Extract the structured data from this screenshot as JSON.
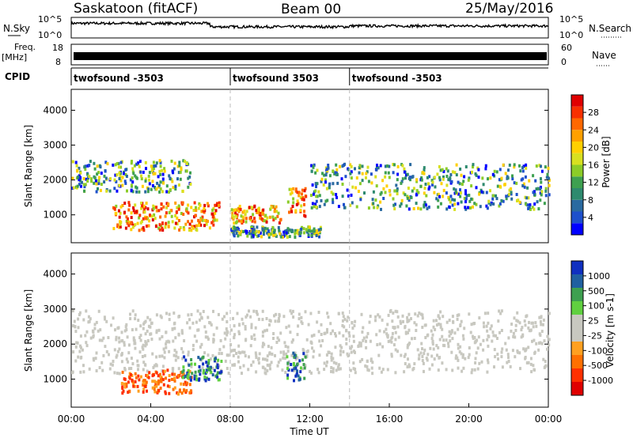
{
  "header": {
    "station": "Saskatoon (fitACF)",
    "beam": "Beam 00",
    "date": "25/May/2016"
  },
  "strips": {
    "nsky_label": "N.Sky",
    "nsky_ticks": [
      "10^5",
      "10^0"
    ],
    "nsearch_label": "N.Search",
    "nsearch_ticks": [
      "10^5",
      "10^0"
    ],
    "freq_label": "Freq.",
    "freq_unit": "[MHz]",
    "freq_ticks": [
      "18",
      "8"
    ],
    "nave_label": "Nave",
    "nave_ticks": [
      "60",
      "0"
    ],
    "cpid_label": "CPID"
  },
  "cpid_segments": [
    {
      "label": "twofsound -3503",
      "start_h": 0,
      "end_h": 8.0
    },
    {
      "label": "twofsound 3503",
      "start_h": 8.0,
      "end_h": 14.0
    },
    {
      "label": "twofsound -3503",
      "start_h": 14.0,
      "end_h": 24.0
    }
  ],
  "chart_data": [
    {
      "type": "heatmap",
      "quantity": "Power",
      "ylabel": "Slant Range [km]",
      "ylim": [
        200,
        4600
      ],
      "yticks": [
        "1000",
        "2000",
        "3000",
        "4000"
      ],
      "xlim_hours": [
        0,
        24
      ],
      "colorbar": {
        "label": "Power [dB]",
        "ticks": [
          "28",
          "24",
          "20",
          "16",
          "12",
          "8",
          "4"
        ],
        "colors": [
          "#0000ff",
          "#1e50cc",
          "#2a6aa0",
          "#2e8a6e",
          "#3ea050",
          "#8ccc28",
          "#d8e020",
          "#ffd000",
          "#ffa000",
          "#ff6800",
          "#f83000",
          "#e00000"
        ]
      },
      "echo_regions": [
        {
          "t0": 0.0,
          "t1": 6.0,
          "r0": 1700,
          "r1": 2600,
          "level": "medium"
        },
        {
          "t0": 2.0,
          "t1": 7.5,
          "r0": 600,
          "r1": 1400,
          "level": "high"
        },
        {
          "t0": 8.0,
          "t1": 10.5,
          "r0": 800,
          "r1": 1300,
          "level": "high"
        },
        {
          "t0": 10.8,
          "t1": 11.8,
          "r0": 1000,
          "r1": 1800,
          "level": "high"
        },
        {
          "t0": 12.0,
          "t1": 24.0,
          "r0": 1200,
          "r1": 2500,
          "level": "medium"
        },
        {
          "t0": 8.0,
          "t1": 12.5,
          "r0": 400,
          "r1": 700,
          "level": "medium"
        }
      ]
    },
    {
      "type": "heatmap",
      "quantity": "Velocity",
      "ylabel": "Slant Range [km]",
      "ylim": [
        200,
        4600
      ],
      "yticks": [
        "1000",
        "2000",
        "3000",
        "4000"
      ],
      "xlim_hours": [
        0,
        24
      ],
      "xlabel": "Time UT",
      "xticks": [
        "00:00",
        "04:00",
        "08:00",
        "12:00",
        "16:00",
        "20:00",
        "00:00"
      ],
      "colorbar": {
        "label": "Velocity [m s-1]",
        "ticks": [
          "1000",
          "500",
          "100",
          "25",
          "-25",
          "-100",
          "-500",
          "-1000"
        ],
        "colors": [
          "#e00000",
          "#ff3000",
          "#ff7000",
          "#ffa020",
          "#c8c8c0",
          "#c8c8c0",
          "#60d040",
          "#3ea050",
          "#2060a0",
          "#1030c0"
        ]
      },
      "echo_regions": [
        {
          "t0": 0.0,
          "t1": 24.0,
          "r0": 1200,
          "r1": 3000,
          "level": "ground"
        },
        {
          "t0": 2.5,
          "t1": 6.0,
          "r0": 600,
          "r1": 1300,
          "level": "negative"
        },
        {
          "t0": 5.5,
          "t1": 7.5,
          "r0": 1000,
          "r1": 1700,
          "level": "positive"
        },
        {
          "t0": 10.8,
          "t1": 11.8,
          "r0": 1000,
          "r1": 1800,
          "level": "positive"
        }
      ]
    }
  ],
  "colors": {
    "frame": "#000000",
    "ground_scatter": "#c8c8c0",
    "divider": "#bbbbbb"
  }
}
